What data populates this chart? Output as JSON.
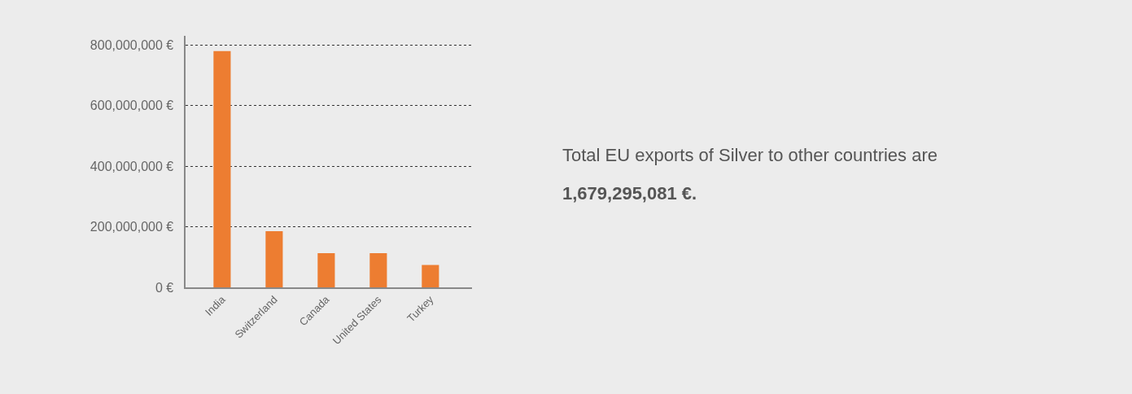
{
  "chart_data": {
    "type": "bar",
    "categories": [
      "India",
      "Switzerland",
      "Canada",
      "United States",
      "Turkey"
    ],
    "values": [
      780000000,
      186000000,
      114000000,
      114000000,
      75000000
    ],
    "color": "#ed7d31",
    "ylim": [
      0,
      830000000
    ],
    "yticks": [
      {
        "value": 0,
        "label": "0 €"
      },
      {
        "value": 200000000,
        "label": "200,000,000 €"
      },
      {
        "value": 400000000,
        "label": "400,000,000 €"
      },
      {
        "value": 600000000,
        "label": "600,000,000 €"
      },
      {
        "value": 800000000,
        "label": "800,000,000 €"
      }
    ],
    "grid": "y",
    "annotations": [
      "Total EU exports of Silver to other countries are",
      "1,679,295,081 €."
    ]
  }
}
